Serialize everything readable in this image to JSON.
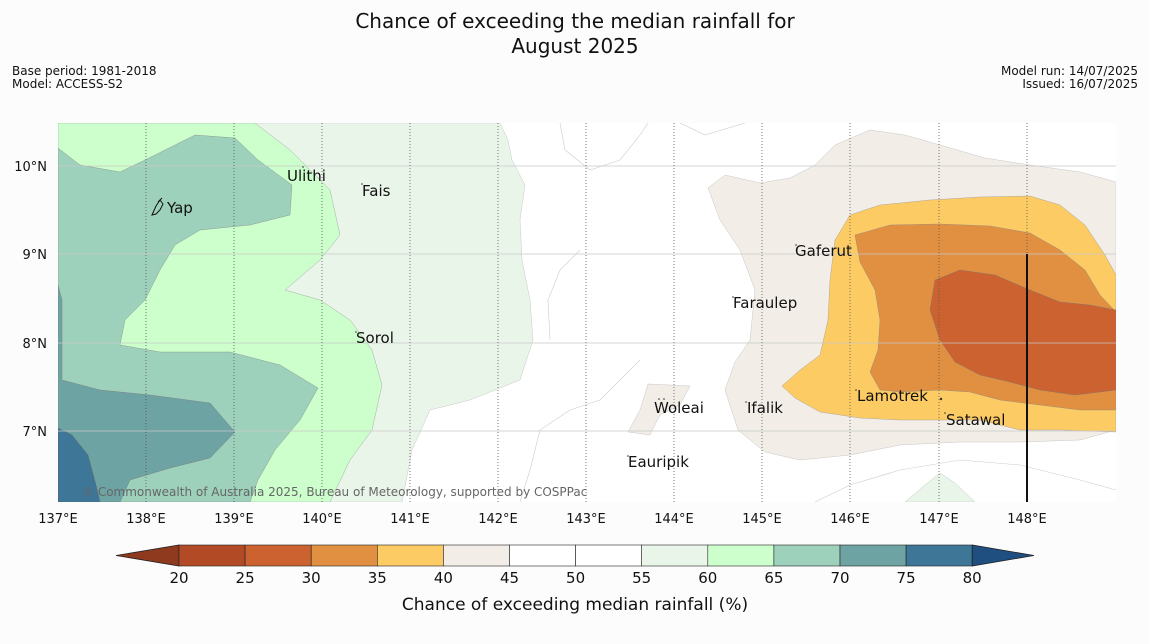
{
  "title_line1": "Chance of exceeding the median rainfall for",
  "title_line2": "August 2025",
  "meta_left": {
    "base_period": "Base period: 1981-2018",
    "model": "Model: ACCESS-S2"
  },
  "meta_right": {
    "model_run": "Model run: 14/07/2025",
    "issued": "Issued: 16/07/2025"
  },
  "copyright": "© Commonwealth of Australia 2025, Bureau of Meteorology, supported by COSPPac",
  "lat_ticks": [
    "10°N",
    "9°N",
    "8°N",
    "7°N"
  ],
  "lon_ticks": [
    "137°E",
    "138°E",
    "139°E",
    "140°E",
    "141°E",
    "142°E",
    "143°E",
    "144°E",
    "145°E",
    "146°E",
    "147°E",
    "148°E"
  ],
  "places": [
    {
      "name": "Ulithi"
    },
    {
      "name": "Fais"
    },
    {
      "name": "Yap"
    },
    {
      "name": "Sorol"
    },
    {
      "name": "Gaferut"
    },
    {
      "name": "Faraulep"
    },
    {
      "name": "Woleai"
    },
    {
      "name": "Ifalik"
    },
    {
      "name": "Lamotrek"
    },
    {
      "name": "Satawal"
    },
    {
      "name": "Eauripik"
    }
  ],
  "colorbar": {
    "title": "Chance of exceeding median rainfall (%)",
    "ticks": [
      "20",
      "25",
      "30",
      "35",
      "40",
      "45",
      "50",
      "55",
      "60",
      "65",
      "70",
      "75",
      "80"
    ],
    "colors": [
      "#8f3a1f",
      "#b24a26",
      "#cc6230",
      "#e09040",
      "#fdcb63",
      "#f2ede6",
      "#ffffff",
      "#ffffff",
      "#eaf5ea",
      "#ccffcc",
      "#9dd1bb",
      "#6ea3a4",
      "#3d7696",
      "#1f4f80"
    ]
  }
}
